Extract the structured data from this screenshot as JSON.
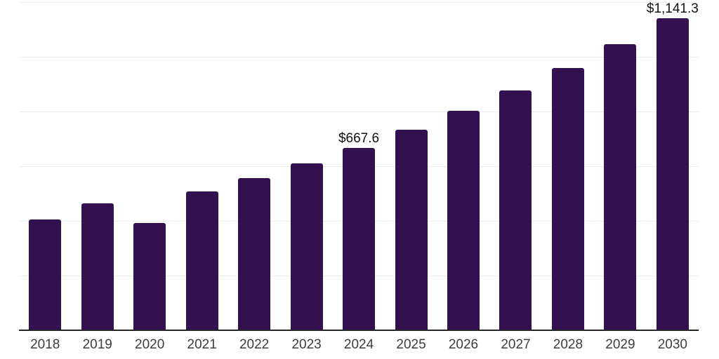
{
  "chart": {
    "background_color": "#ffffff",
    "bar_color": "#331150",
    "gridline_color": "#ededed",
    "axis_line_color": "#262626",
    "value_label_color": "#111111",
    "tick_label_color": "#3d3d3d"
  },
  "chart_data": {
    "type": "bar",
    "title": "",
    "xlabel": "",
    "ylabel": "",
    "categories": [
      "2018",
      "2019",
      "2020",
      "2021",
      "2022",
      "2023",
      "2024",
      "2025",
      "2026",
      "2027",
      "2028",
      "2029",
      "2030"
    ],
    "values": [
      406.4,
      465.0,
      392.4,
      507.1,
      557.4,
      610.2,
      667.6,
      732.6,
      801.4,
      877.8,
      958.0,
      1046.0,
      1141.3
    ],
    "value_labels": [
      null,
      null,
      null,
      null,
      null,
      null,
      "$667.6",
      null,
      null,
      null,
      null,
      null,
      "$1,141.3"
    ],
    "ylim": [
      0,
      1200
    ],
    "grid_step": 200,
    "grid": "horizontal",
    "y_axis_tick_labels_visible": false,
    "legend_position": "none"
  }
}
